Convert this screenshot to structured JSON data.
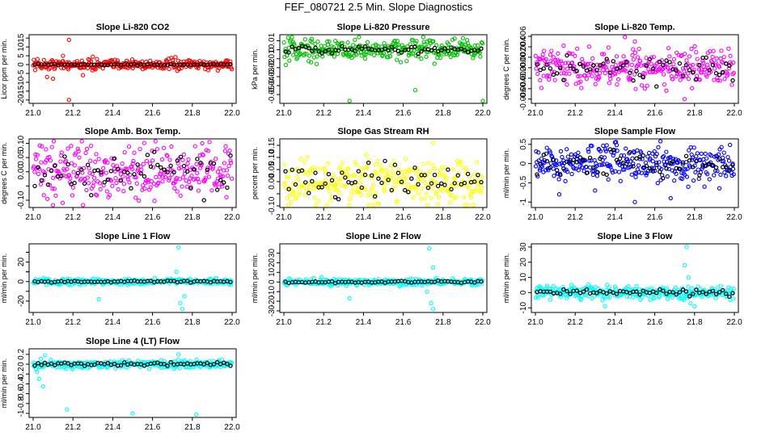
{
  "title": "FEF_080721  2.5 Min. Slope Diagnostics",
  "chart_data": [
    {
      "type": "scatter",
      "title": "Slope Li-820 CO2",
      "ylabel": "Licor ppm per min.",
      "xlim": [
        21,
        22
      ],
      "ylim": [
        -21,
        16
      ],
      "yticks": [
        -20,
        -15,
        -10,
        -5,
        0,
        5,
        10,
        15
      ],
      "xticks": [
        21.0,
        21.2,
        21.4,
        21.6,
        21.8,
        22.0
      ],
      "xtick_labels": [
        "21.0",
        "21.2",
        "21.4",
        "21.6",
        "21.8",
        "22.0"
      ],
      "color": "#ff0000",
      "spread": 1.5,
      "outliers": [
        [
          21.07,
          -7
        ],
        [
          21.1,
          -8
        ],
        [
          21.18,
          14
        ],
        [
          21.18,
          -20
        ],
        [
          21.15,
          5
        ],
        [
          21.25,
          -6
        ],
        [
          21.3,
          4.5
        ]
      ],
      "black_spread": 0.2
    },
    {
      "type": "scatter",
      "title": "Slope Li-820 Pressure",
      "ylabel": "kPa per min.",
      "xlim": [
        21,
        22
      ],
      "ylim": [
        -0.058,
        0.015
      ],
      "yticks": [
        -0.05,
        -0.04,
        -0.03,
        -0.02,
        -0.01,
        0.0,
        0.01
      ],
      "xticks": [
        21.0,
        21.2,
        21.4,
        21.6,
        21.8,
        22.0
      ],
      "xtick_labels": [
        "21.0",
        "21.2",
        "21.4",
        "21.6",
        "21.8",
        "22.0"
      ],
      "color": "#00c000",
      "spread": 0.006,
      "outliers": [
        [
          21.01,
          -0.017
        ],
        [
          21.33,
          -0.057
        ],
        [
          21.66,
          -0.045
        ],
        [
          22.0,
          -0.057
        ],
        [
          21.14,
          0.012
        ],
        [
          21.9,
          0.013
        ]
      ],
      "black_spread": 0.002
    },
    {
      "type": "scatter",
      "title": "Slope Li-820 Temp.",
      "ylabel": "degrees C per min.",
      "xlim": [
        21,
        22
      ],
      "ylim": [
        -0.0065,
        0.006
      ],
      "yticks": [
        -0.006,
        -0.004,
        -0.002,
        0.0,
        0.002,
        0.004,
        0.006
      ],
      "ytick_labels": [
        "-0.006",
        "-0.004",
        "-0.002",
        "0.000",
        "0.002",
        "0.004",
        "0.006"
      ],
      "xticks": [
        21.0,
        21.2,
        21.4,
        21.6,
        21.8,
        22.0
      ],
      "xtick_labels": [
        "21.0",
        "21.2",
        "21.4",
        "21.6",
        "21.8",
        "22.0"
      ],
      "color": "#ff00ff",
      "spread": 0.0016,
      "outliers": [
        [
          21.45,
          0.006
        ],
        [
          21.5,
          0.005
        ],
        [
          21.75,
          -0.006
        ],
        [
          21.55,
          -0.004
        ]
      ],
      "black_spread": 0.0012
    },
    {
      "type": "scatter",
      "title": "Slope Amb. Box Temp.",
      "ylabel": "degrees C per min.",
      "xlim": [
        21,
        22
      ],
      "ylim": [
        -0.12,
        0.11
      ],
      "yticks": [
        -0.1,
        0.0,
        0.05,
        0.1
      ],
      "ytick_labels": [
        "-0.10",
        "0.00",
        "0.05",
        "0.10"
      ],
      "minor_yticks": [
        -0.05
      ],
      "xticks": [
        21.0,
        21.2,
        21.4,
        21.6,
        21.8,
        22.0
      ],
      "xtick_labels": [
        "21.0",
        "21.2",
        "21.4",
        "21.6",
        "21.8",
        "22.0"
      ],
      "color": "#ff00ff",
      "spread": 0.045,
      "outliers": [
        [
          21.1,
          -0.12
        ],
        [
          21.85,
          0.1
        ]
      ],
      "black_spread": 0.035
    },
    {
      "type": "scatter",
      "title": "Slope Gas Stream RH",
      "ylabel": "percent per min.",
      "xlim": [
        21,
        22
      ],
      "ylim": [
        -0.1,
        0.17
      ],
      "yticks": [
        -0.1,
        0.0,
        0.05,
        0.1,
        0.15
      ],
      "ytick_labels": [
        "-0.10",
        "0.00",
        "0.05",
        "0.10",
        "0.15"
      ],
      "minor_yticks": [
        -0.05
      ],
      "xticks": [
        21.0,
        21.2,
        21.4,
        21.6,
        21.8,
        22.0
      ],
      "xtick_labels": [
        "21.0",
        "21.2",
        "21.4",
        "21.6",
        "21.8",
        "22.0"
      ],
      "color": "#ffff00",
      "spread": 0.045,
      "outliers": [
        [
          21.75,
          0.16
        ],
        [
          21.45,
          -0.1
        ]
      ],
      "black_spread": 0.035
    },
    {
      "type": "scatter",
      "title": "Slope Sample Flow",
      "ylabel": "ml/min per min.",
      "xlim": [
        21,
        22
      ],
      "ylim": [
        -1.1,
        0.6
      ],
      "yticks": [
        -1.0,
        -0.5,
        0.0,
        0.5
      ],
      "xticks": [
        21.0,
        21.2,
        21.4,
        21.6,
        21.8,
        22.0
      ],
      "xtick_labels": [
        "21.0",
        "21.2",
        "21.4",
        "21.6",
        "21.8",
        "22.0"
      ],
      "color": "#0000ff",
      "spread": 0.22,
      "outliers": [
        [
          21.12,
          -0.8
        ],
        [
          21.3,
          -0.7
        ],
        [
          21.5,
          -1.0
        ],
        [
          21.68,
          -0.9
        ],
        [
          21.4,
          0.55
        ],
        [
          21.85,
          -0.6
        ]
      ],
      "black_spread": 0.15
    },
    {
      "type": "scatter",
      "title": "Slope Line 1 Flow",
      "ylabel": "ml/min per min.",
      "xlim": [
        21,
        22
      ],
      "ylim": [
        -30,
        37
      ],
      "yticks": [
        -20,
        0,
        10,
        20,
        30
      ],
      "ytick_labels": [
        "-20",
        "0",
        "",
        "20",
        ""
      ],
      "minor_yticks": [
        -10,
        10,
        30
      ],
      "xticks": [
        21.0,
        21.2,
        21.4,
        21.6,
        21.8,
        22.0
      ],
      "xtick_labels": [
        "21.0",
        "21.2",
        "21.4",
        "21.6",
        "21.8",
        "22.0"
      ],
      "color": "#00ffff",
      "spread": 1.5,
      "outliers": [
        [
          21.33,
          -18
        ],
        [
          21.73,
          35
        ],
        [
          21.74,
          -22
        ],
        [
          21.75,
          -28
        ],
        [
          21.72,
          10
        ],
        [
          21.76,
          -15
        ]
      ],
      "black_spread": 0.4
    },
    {
      "type": "scatter",
      "title": "Slope Line 2 Flow",
      "ylabel": "ml/min per min.",
      "xlim": [
        21,
        22
      ],
      "ylim": [
        -30,
        38
      ],
      "yticks": [
        -30,
        -20,
        -10,
        0,
        10,
        20,
        30
      ],
      "xticks": [
        21.0,
        21.2,
        21.4,
        21.6,
        21.8,
        22.0
      ],
      "xtick_labels": [
        "21.0",
        "21.2",
        "21.4",
        "21.6",
        "21.8",
        "22.0"
      ],
      "color": "#00ffff",
      "spread": 1.8,
      "outliers": [
        [
          21.33,
          -17
        ],
        [
          21.73,
          35
        ],
        [
          21.74,
          -22
        ],
        [
          21.75,
          -28
        ],
        [
          21.75,
          15
        ],
        [
          21.72,
          -10
        ]
      ],
      "black_spread": 0.5
    },
    {
      "type": "scatter",
      "title": "Slope Line 3 Flow",
      "ylabel": "ml/min per min.",
      "xlim": [
        21,
        22
      ],
      "ylim": [
        -12,
        31
      ],
      "yticks": [
        -10,
        0,
        10,
        20,
        30
      ],
      "xticks": [
        21.0,
        21.2,
        21.4,
        21.6,
        21.8,
        22.0
      ],
      "xtick_labels": [
        "21.0",
        "21.2",
        "21.4",
        "21.6",
        "21.8",
        "22.0"
      ],
      "color": "#00ffff",
      "spread": 2.2,
      "outliers": [
        [
          21.76,
          30
        ],
        [
          21.75,
          18
        ],
        [
          21.35,
          -9
        ],
        [
          21.78,
          -7
        ],
        [
          21.8,
          -9
        ],
        [
          21.77,
          10
        ]
      ],
      "black_spread": 1.0
    },
    {
      "type": "scatter",
      "title": "Slope Line 4 (LT) Flow",
      "ylabel": "ml/min per min.",
      "xlim": [
        21,
        22
      ],
      "ylim": [
        -1.05,
        0.28
      ],
      "yticks": [
        -1.0,
        -0.8,
        -0.6,
        -0.4,
        -0.2,
        0.0,
        0.2
      ],
      "xticks": [
        21.0,
        21.2,
        21.4,
        21.6,
        21.8,
        22.0
      ],
      "xtick_labels": [
        "21.0",
        "21.2",
        "21.4",
        "21.6",
        "21.8",
        "22.0"
      ],
      "color": "#00ffff",
      "spread": 0.04,
      "outliers": [
        [
          21.05,
          -0.45
        ],
        [
          21.03,
          -0.3
        ],
        [
          21.06,
          0.18
        ],
        [
          21.17,
          -0.92
        ],
        [
          21.5,
          -1.0
        ],
        [
          21.82,
          -1.02
        ],
        [
          21.73,
          0.2
        ],
        [
          21.02,
          -0.15
        ]
      ],
      "black_spread": 0.02
    }
  ]
}
